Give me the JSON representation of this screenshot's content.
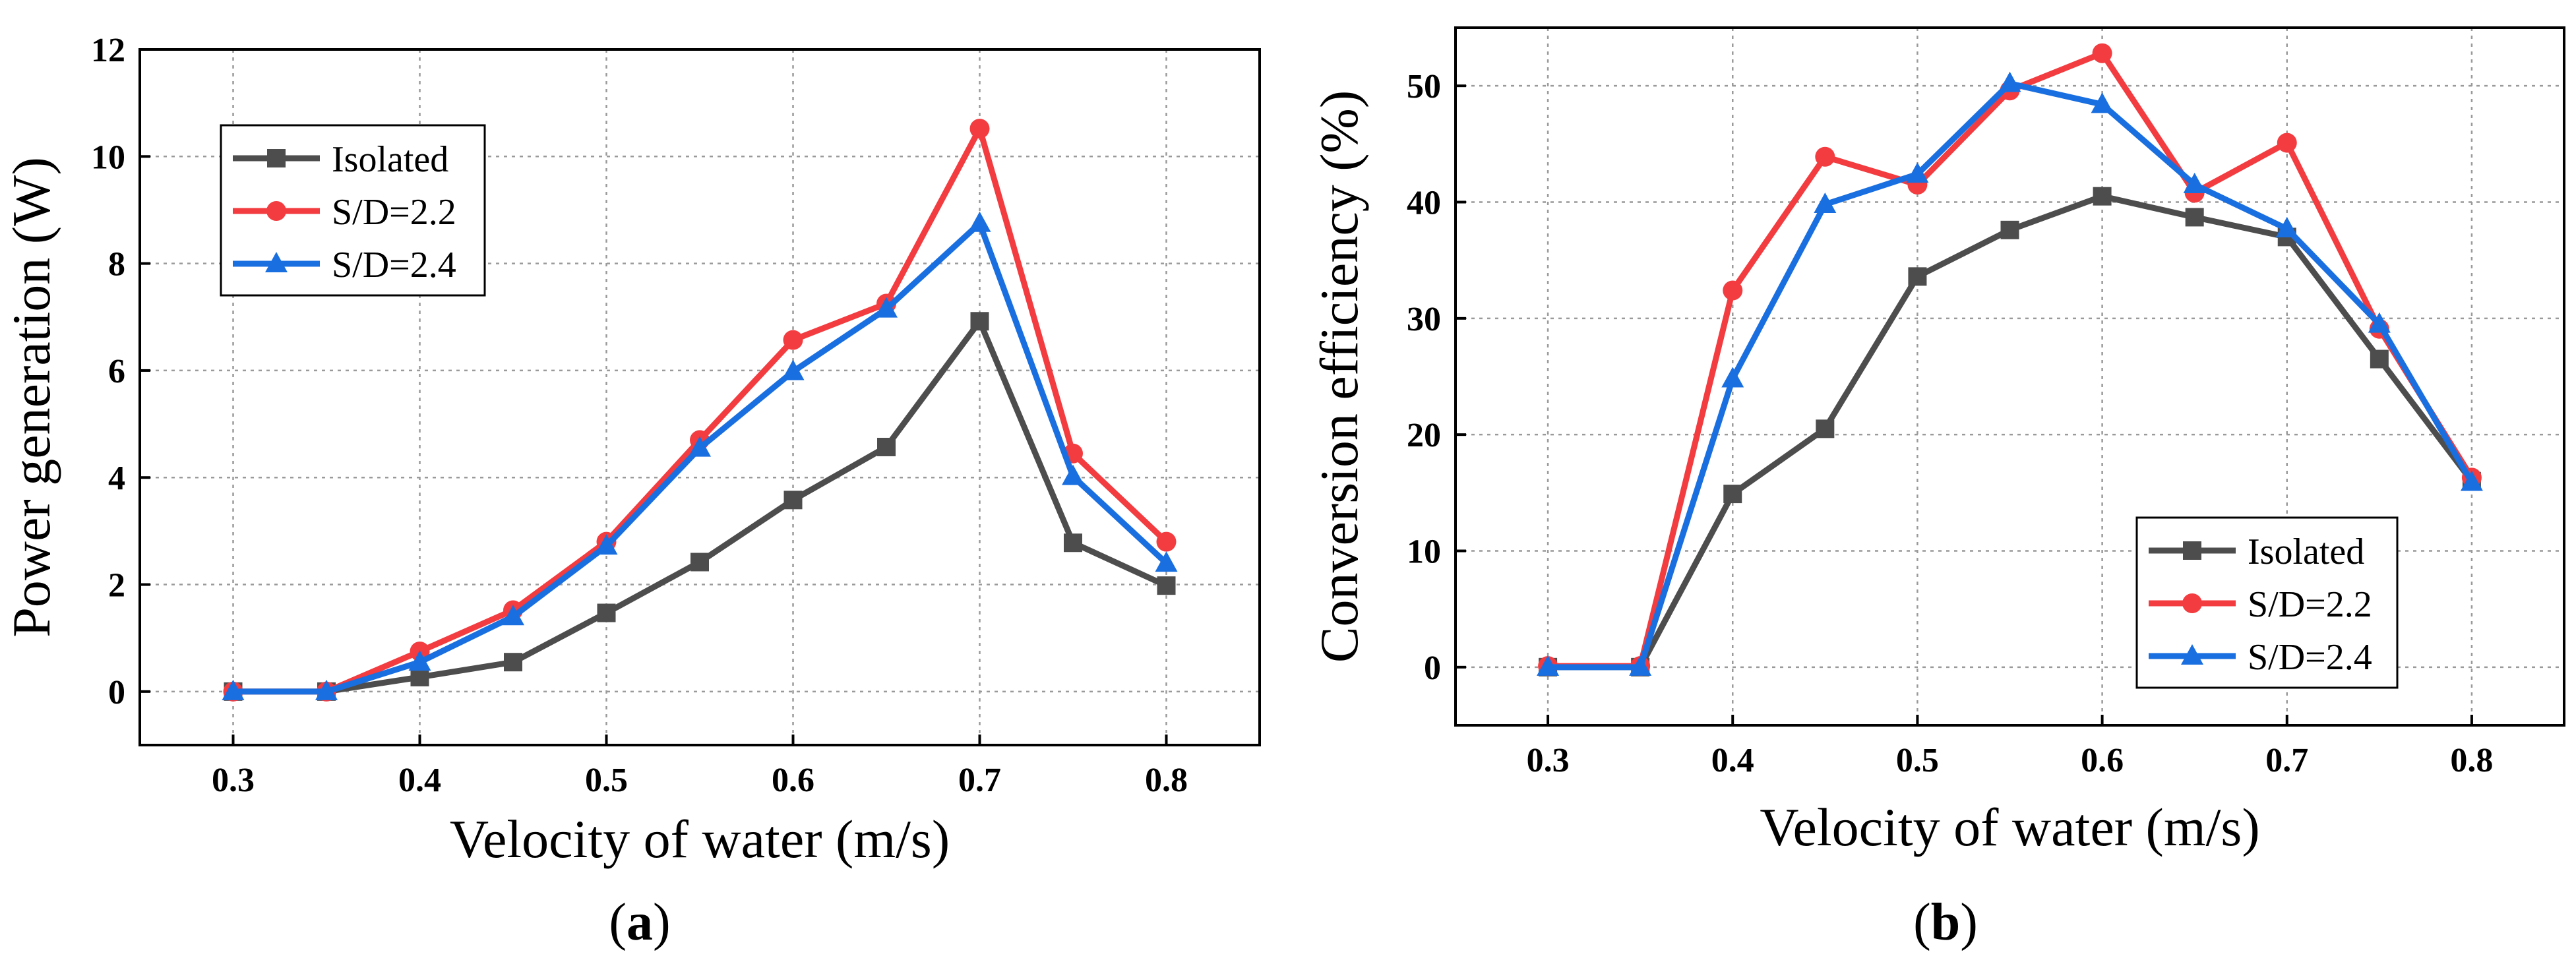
{
  "colors": {
    "isolated": "#4d4d4d",
    "sd22": "#f23c40",
    "sd24": "#1a6fe0"
  },
  "chart_data": [
    {
      "id": "a",
      "type": "line",
      "panel_label": "a",
      "xlabel": "Velocity of water (m/s)",
      "ylabel": "Power generation (W)",
      "xlim": [
        0.25,
        0.85
      ],
      "ylim": [
        -1,
        12
      ],
      "xticks": [
        "0.3",
        "0.4",
        "0.5",
        "0.6",
        "0.7",
        "0.8"
      ],
      "yticks": [
        "0",
        "2",
        "4",
        "6",
        "8",
        "10",
        "12"
      ],
      "legend_position": "upper-left",
      "x": [
        0.3,
        0.35,
        0.4,
        0.45,
        0.5,
        0.55,
        0.6,
        0.65,
        0.7,
        0.75,
        0.8
      ],
      "series": [
        {
          "name": "Isolated",
          "marker": "square",
          "color_key": "isolated",
          "values": [
            0,
            0,
            0.27,
            0.55,
            1.47,
            2.42,
            3.58,
            4.57,
            6.92,
            2.78,
            1.98
          ]
        },
        {
          "name": "S/D=2.2",
          "marker": "circle",
          "color_key": "sd22",
          "values": [
            0,
            0,
            0.75,
            1.52,
            2.8,
            4.7,
            6.57,
            7.25,
            10.52,
            4.45,
            2.8
          ]
        },
        {
          "name": "S/D=2.4",
          "marker": "triangle",
          "color_key": "sd24",
          "values": [
            0,
            0,
            0.55,
            1.4,
            2.72,
            4.55,
            5.98,
            7.15,
            8.75,
            4.02,
            2.4
          ]
        }
      ]
    },
    {
      "id": "b",
      "type": "line",
      "panel_label": "b",
      "xlabel": "Velocity of water (m/s)",
      "ylabel": "Conversion efficiency (%)",
      "xlim": [
        0.25,
        0.85
      ],
      "ylim": [
        -5,
        55
      ],
      "xticks": [
        "0.3",
        "0.4",
        "0.5",
        "0.6",
        "0.7",
        "0.8"
      ],
      "yticks": [
        "0",
        "10",
        "20",
        "30",
        "40",
        "50"
      ],
      "legend_position": "lower-right",
      "x": [
        0.3,
        0.35,
        0.4,
        0.45,
        0.5,
        0.55,
        0.6,
        0.65,
        0.7,
        0.75,
        0.8
      ],
      "series": [
        {
          "name": "Isolated",
          "marker": "square",
          "color_key": "isolated",
          "values": [
            0,
            0,
            14.9,
            20.5,
            33.6,
            37.6,
            40.5,
            38.7,
            37,
            26.5,
            16
          ]
        },
        {
          "name": "S/D=2.2",
          "marker": "circle",
          "color_key": "sd22",
          "values": [
            0.1,
            0.1,
            32.4,
            43.9,
            41.5,
            49.6,
            52.8,
            40.8,
            45.1,
            29.1,
            16.3
          ]
        },
        {
          "name": "S/D=2.4",
          "marker": "triangle",
          "color_key": "sd24",
          "values": [
            0,
            0,
            24.8,
            39.8,
            42.4,
            50.2,
            48.4,
            41.5,
            37.7,
            29.5,
            15.9
          ]
        }
      ]
    }
  ]
}
